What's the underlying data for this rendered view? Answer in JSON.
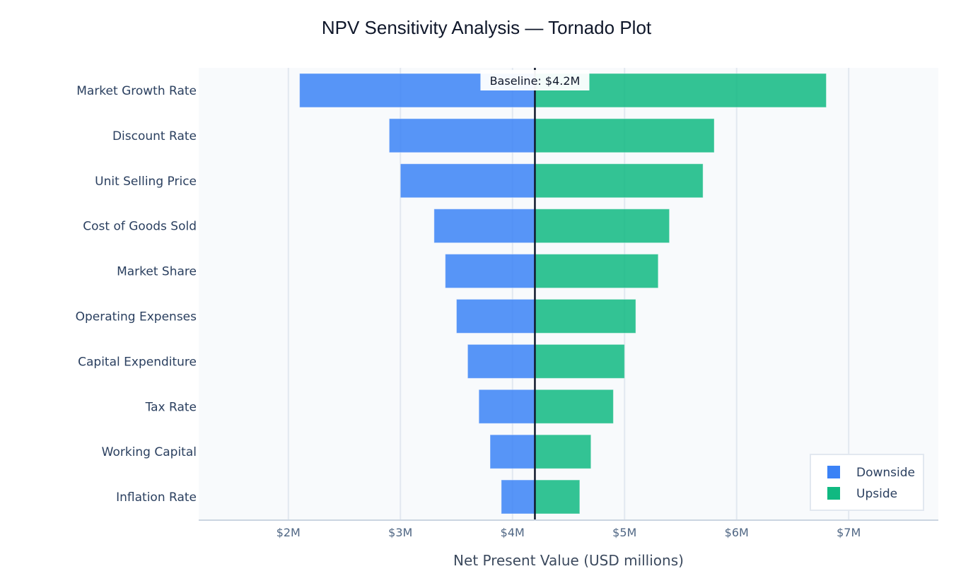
{
  "chart_data": {
    "type": "bar",
    "orientation": "horizontal",
    "title": "NPV Sensitivity Analysis — Tornado Plot",
    "xlabel": "Net Present Value (USD millions)",
    "ylabel": "",
    "xlim": [
      1.2,
      7.8
    ],
    "x_ticks": [
      2,
      3,
      4,
      5,
      6,
      7
    ],
    "x_tick_labels": [
      "$2M",
      "$3M",
      "$4M",
      "$5M",
      "$6M",
      "$7M"
    ],
    "grid": true,
    "baseline": 4.2,
    "baseline_label": "Baseline: $4.2M",
    "categories": [
      "Market Growth Rate",
      "Discount Rate",
      "Unit Selling Price",
      "Cost of Goods Sold",
      "Market Share",
      "Operating Expenses",
      "Capital Expenditure",
      "Tax Rate",
      "Working Capital",
      "Inflation Rate"
    ],
    "series": [
      {
        "name": "Downside",
        "color": "#3b82f6",
        "values": [
          2.1,
          2.9,
          3.0,
          3.3,
          3.4,
          3.5,
          3.6,
          3.7,
          3.8,
          3.9
        ]
      },
      {
        "name": "Upside",
        "color": "#10b981",
        "values": [
          6.8,
          5.8,
          5.7,
          5.4,
          5.3,
          5.1,
          5.0,
          4.9,
          4.7,
          4.6
        ]
      }
    ],
    "legend": {
      "position": "bottom-right",
      "entries": [
        "Downside",
        "Upside"
      ]
    }
  },
  "colors": {
    "plot_background": "#f8fafc",
    "grid": "#e2e8f0",
    "baseline_line": "#0f172a",
    "axis_line": "#cbd5e1"
  }
}
